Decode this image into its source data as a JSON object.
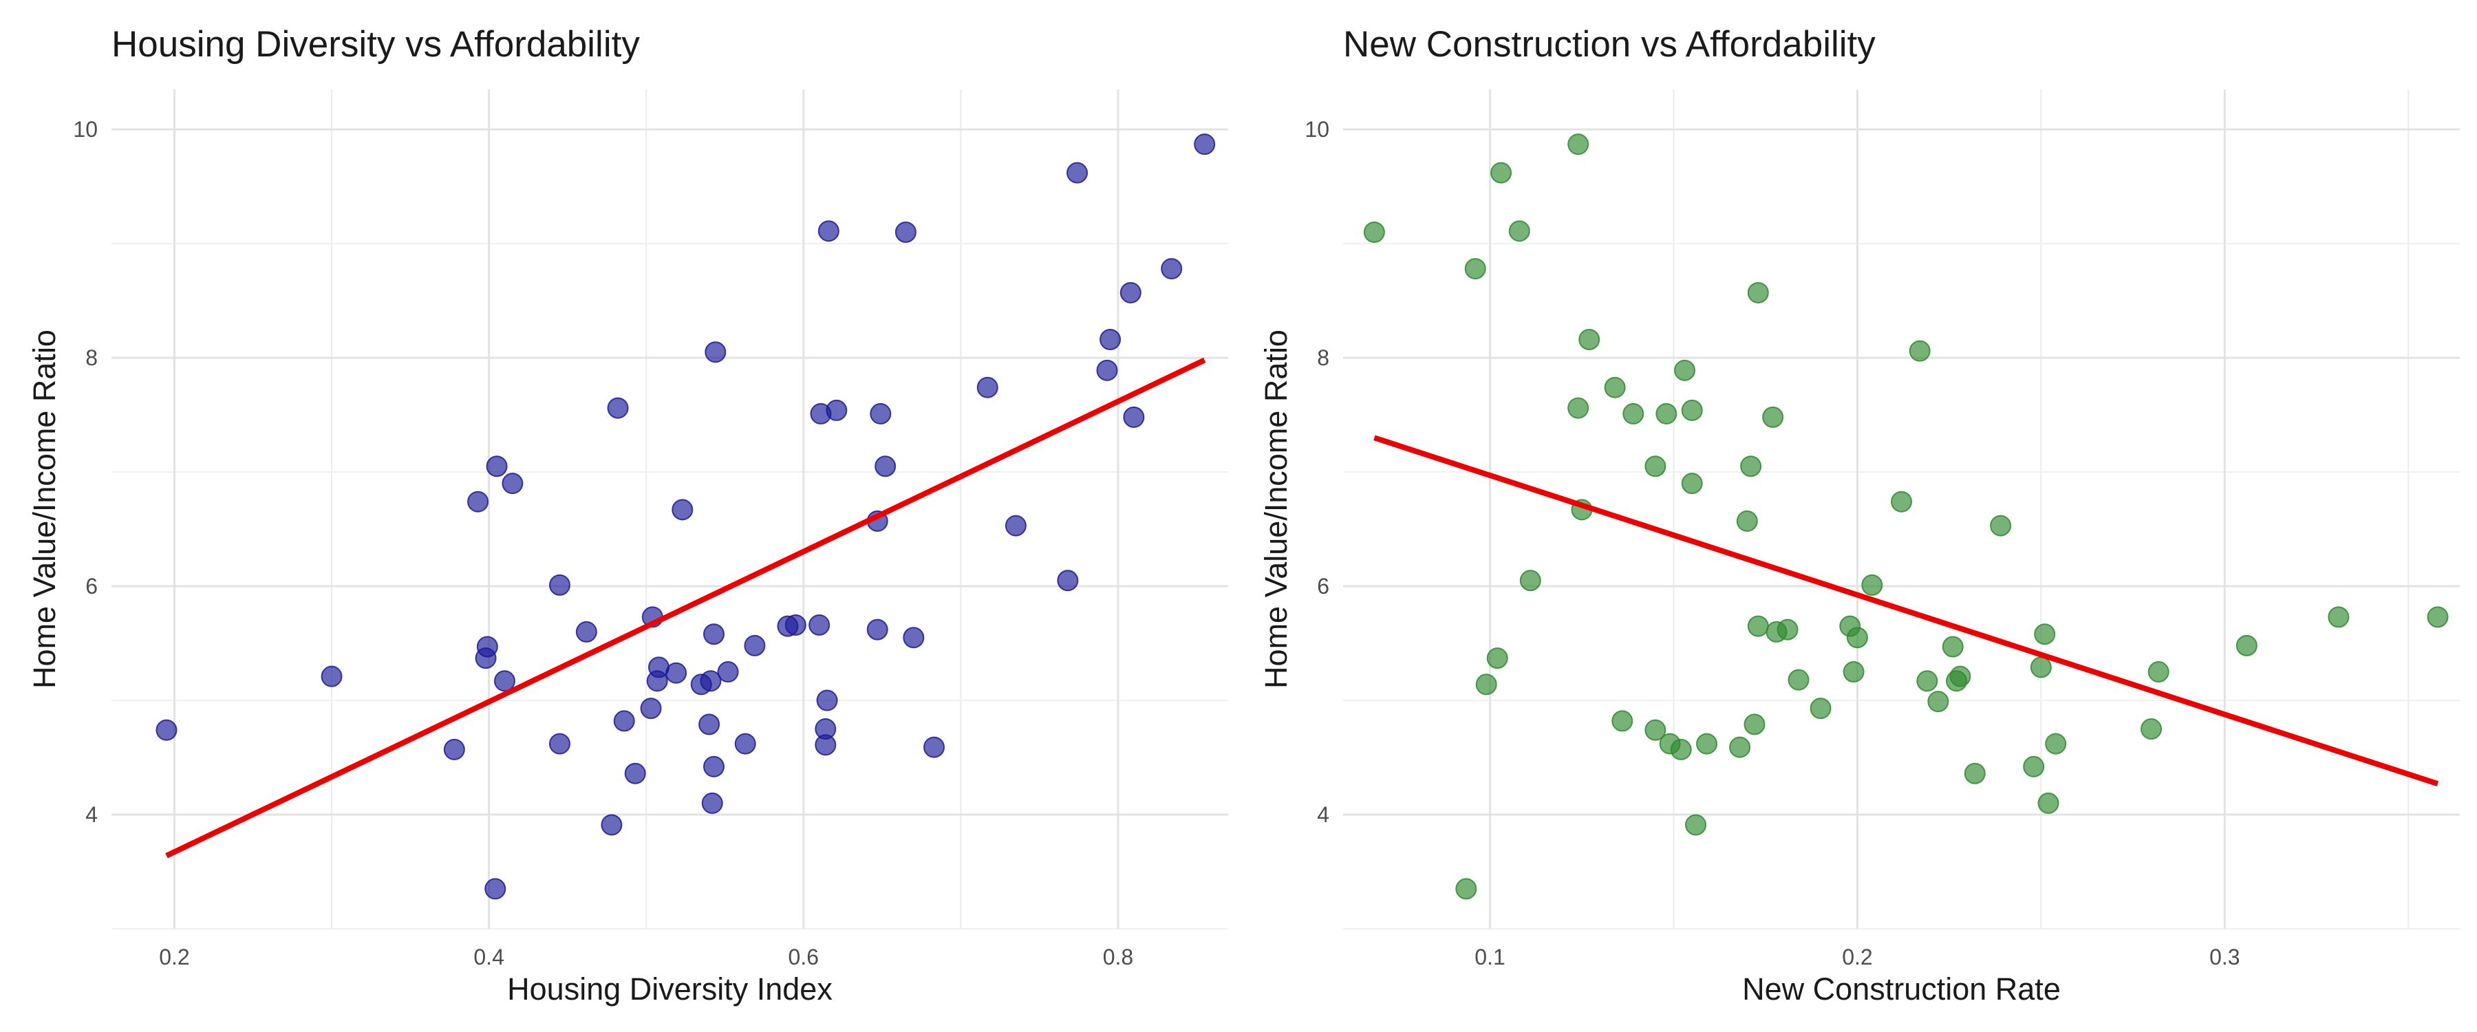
{
  "chart_data": [
    {
      "type": "scatter",
      "title": "Housing Diversity vs Affordability",
      "xlabel": "Housing Diversity Index",
      "ylabel": "Home Value/Income Ratio",
      "xlim": [
        0.16,
        0.87
      ],
      "ylim": [
        3.0,
        10.35
      ],
      "xticks": [
        0.2,
        0.4,
        0.6,
        0.8
      ],
      "yticks": [
        4,
        6,
        8,
        10
      ],
      "grid": true,
      "point_color": "#1a1a9a",
      "line_color": "#ee0000",
      "trend_line": [
        [
          0.195,
          3.64
        ],
        [
          0.855,
          7.98
        ]
      ],
      "x": [
        0.195,
        0.3,
        0.378,
        0.393,
        0.398,
        0.399,
        0.404,
        0.405,
        0.41,
        0.415,
        0.445,
        0.445,
        0.462,
        0.478,
        0.482,
        0.486,
        0.493,
        0.503,
        0.504,
        0.507,
        0.508,
        0.519,
        0.523,
        0.535,
        0.54,
        0.541,
        0.543,
        0.542,
        0.543,
        0.544,
        0.552,
        0.563,
        0.569,
        0.59,
        0.595,
        0.61,
        0.611,
        0.614,
        0.614,
        0.615,
        0.616,
        0.621,
        0.647,
        0.647,
        0.649,
        0.652,
        0.67,
        0.665,
        0.683,
        0.717,
        0.735,
        0.768,
        0.774,
        0.793,
        0.795,
        0.808,
        0.81,
        0.834,
        0.855
      ],
      "y": [
        4.74,
        5.21,
        4.57,
        6.74,
        5.37,
        5.47,
        3.35,
        7.05,
        5.17,
        6.9,
        4.62,
        6.01,
        5.6,
        3.91,
        7.56,
        4.82,
        4.36,
        4.93,
        5.73,
        5.17,
        5.29,
        5.24,
        6.67,
        5.14,
        4.79,
        5.17,
        4.42,
        4.1,
        5.58,
        8.05,
        5.25,
        4.62,
        5.48,
        5.65,
        5.66,
        5.66,
        7.51,
        4.75,
        4.61,
        5.0,
        9.11,
        7.54,
        5.62,
        6.57,
        7.51,
        7.05,
        5.55,
        9.1,
        4.59,
        7.74,
        6.53,
        6.05,
        9.62,
        7.89,
        8.16,
        8.57,
        7.48,
        8.78,
        9.87
      ]
    },
    {
      "type": "scatter",
      "title": "New Construction vs Affordability",
      "xlabel": "New Construction Rate",
      "ylabel": "Home Value/Income Ratio",
      "xlim": [
        0.06,
        0.364
      ],
      "ylim": [
        3.0,
        10.35
      ],
      "xticks": [
        0.1,
        0.2,
        0.3
      ],
      "yticks": [
        4,
        6,
        8,
        10
      ],
      "grid": true,
      "point_color": "#2e8b2e",
      "line_color": "#ee0000",
      "trend_line": [
        [
          0.0685,
          7.3
        ],
        [
          0.358,
          4.27
        ]
      ],
      "x": [
        0.0685,
        0.0935,
        0.096,
        0.099,
        0.102,
        0.103,
        0.108,
        0.111,
        0.124,
        0.124,
        0.125,
        0.127,
        0.134,
        0.136,
        0.139,
        0.145,
        0.145,
        0.148,
        0.149,
        0.152,
        0.153,
        0.155,
        0.155,
        0.156,
        0.159,
        0.168,
        0.17,
        0.171,
        0.172,
        0.173,
        0.173,
        0.177,
        0.178,
        0.181,
        0.184,
        0.19,
        0.198,
        0.199,
        0.2,
        0.204,
        0.212,
        0.217,
        0.219,
        0.222,
        0.226,
        0.227,
        0.228,
        0.232,
        0.239,
        0.248,
        0.25,
        0.251,
        0.252,
        0.254,
        0.28,
        0.282,
        0.306,
        0.331,
        0.358
      ],
      "y": [
        9.1,
        3.35,
        8.78,
        5.14,
        5.37,
        9.62,
        9.11,
        6.05,
        9.87,
        7.56,
        6.67,
        8.16,
        7.74,
        4.82,
        7.51,
        4.74,
        7.05,
        7.51,
        4.62,
        4.57,
        7.89,
        6.9,
        7.54,
        3.91,
        4.62,
        4.59,
        6.57,
        7.05,
        4.79,
        8.57,
        5.65,
        7.48,
        5.6,
        5.62,
        5.18,
        4.93,
        5.65,
        5.25,
        5.55,
        6.01,
        6.74,
        8.06,
        5.17,
        4.99,
        5.47,
        5.17,
        5.21,
        4.36,
        6.53,
        4.42,
        5.29,
        5.58,
        4.1,
        4.62,
        4.75,
        5.25,
        5.48,
        5.73,
        5.73
      ]
    }
  ]
}
